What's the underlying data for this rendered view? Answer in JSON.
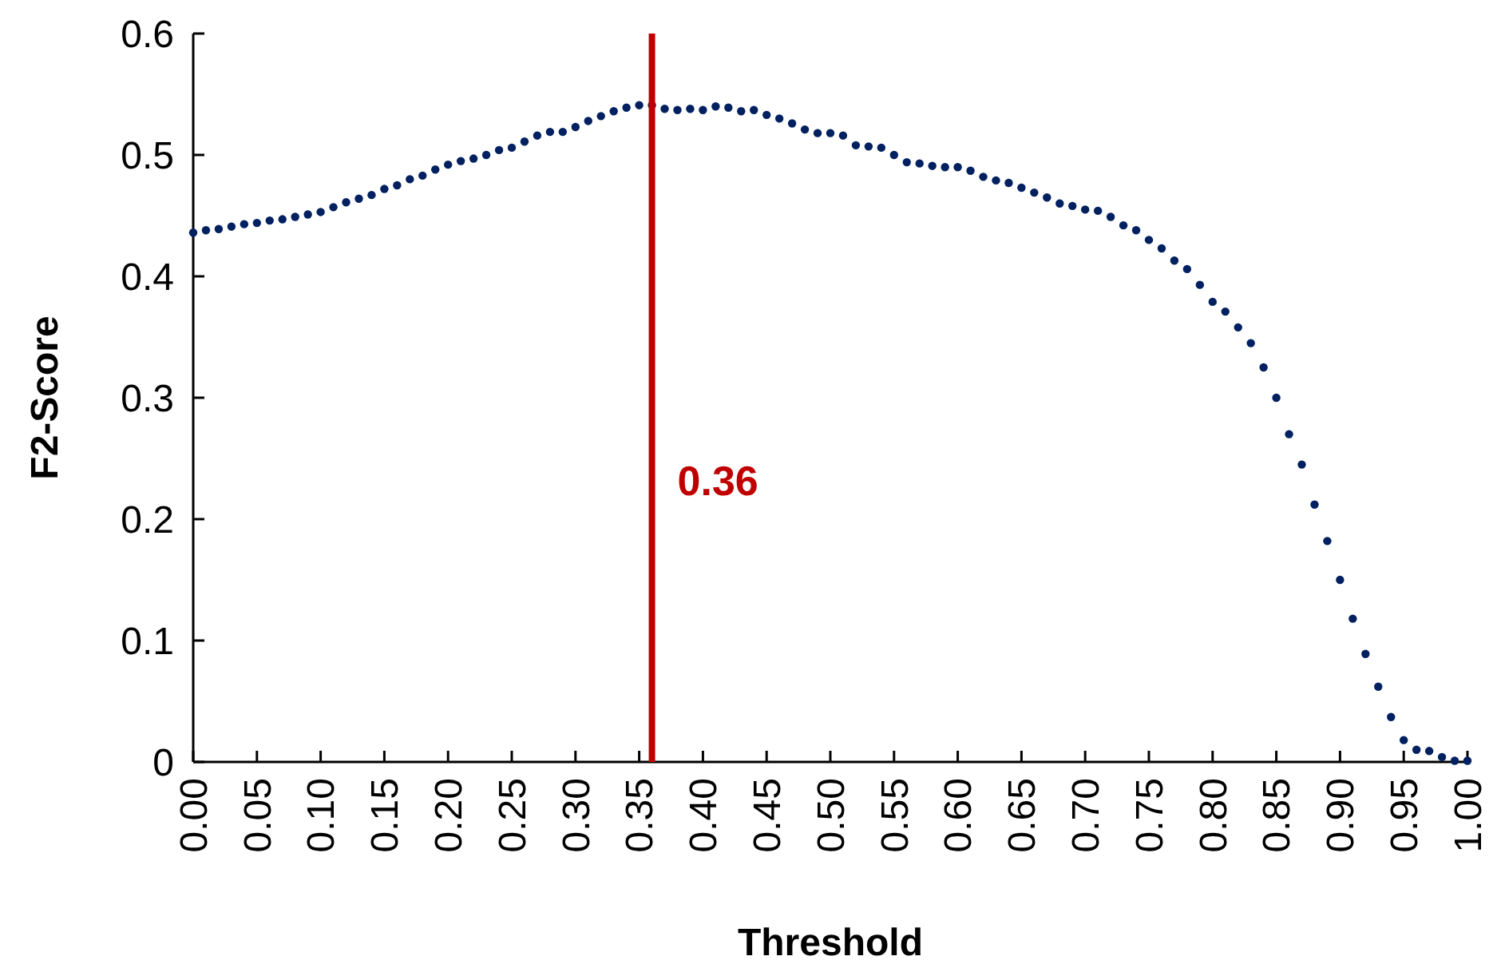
{
  "chart_data": {
    "type": "scatter",
    "xlabel": "Threshold",
    "ylabel": "F2-Score",
    "marker": "circle",
    "grid": false,
    "xlim": [
      0,
      1
    ],
    "ylim": [
      0,
      0.6
    ],
    "xticks": [
      {
        "value": 0,
        "label": "0.00"
      },
      {
        "value": 0.05,
        "label": "0.05"
      },
      {
        "value": 0.1,
        "label": "0.10"
      },
      {
        "value": 0.15,
        "label": "0.15"
      },
      {
        "value": 0.2,
        "label": "0.20"
      },
      {
        "value": 0.25,
        "label": "0.25"
      },
      {
        "value": 0.3,
        "label": "0.30"
      },
      {
        "value": 0.35,
        "label": "0.35"
      },
      {
        "value": 0.4,
        "label": "0.40"
      },
      {
        "value": 0.45,
        "label": "0.45"
      },
      {
        "value": 0.5,
        "label": "0.50"
      },
      {
        "value": 0.55,
        "label": "0.55"
      },
      {
        "value": 0.6,
        "label": "0.60"
      },
      {
        "value": 0.65,
        "label": "0.65"
      },
      {
        "value": 0.7,
        "label": "0.70"
      },
      {
        "value": 0.75,
        "label": "0.75"
      },
      {
        "value": 0.8,
        "label": "0.80"
      },
      {
        "value": 0.85,
        "label": "0.85"
      },
      {
        "value": 0.9,
        "label": "0.90"
      },
      {
        "value": 0.95,
        "label": "0.95"
      },
      {
        "value": 1,
        "label": "1.00"
      }
    ],
    "yticks": [
      0,
      0.1,
      0.2,
      0.3,
      0.4,
      0.5,
      0.6
    ],
    "x": [
      0,
      0.01,
      0.02,
      0.03,
      0.04,
      0.05,
      0.06,
      0.07,
      0.08,
      0.09,
      0.1,
      0.11,
      0.12,
      0.13,
      0.14,
      0.15,
      0.16,
      0.17,
      0.18,
      0.19,
      0.2,
      0.21,
      0.22,
      0.23,
      0.24,
      0.25,
      0.26,
      0.27,
      0.28,
      0.29,
      0.3,
      0.31,
      0.32,
      0.33,
      0.34,
      0.35,
      0.36,
      0.37,
      0.38,
      0.39,
      0.4,
      0.41,
      0.42,
      0.43,
      0.44,
      0.45,
      0.46,
      0.47,
      0.48,
      0.49,
      0.5,
      0.51,
      0.52,
      0.53,
      0.54,
      0.55,
      0.56,
      0.57,
      0.58,
      0.59,
      0.6,
      0.61,
      0.62,
      0.63,
      0.64,
      0.65,
      0.66,
      0.67,
      0.68,
      0.69,
      0.7,
      0.71,
      0.72,
      0.73,
      0.74,
      0.75,
      0.76,
      0.77,
      0.78,
      0.79,
      0.8,
      0.81,
      0.82,
      0.83,
      0.84,
      0.85,
      0.86,
      0.87,
      0.88,
      0.89,
      0.9,
      0.91,
      0.92,
      0.93,
      0.94,
      0.95,
      0.96,
      0.97,
      0.98,
      0.99,
      1
    ],
    "series": [
      {
        "color": "#002060",
        "values": [
          0.436,
          0.438,
          0.439,
          0.441,
          0.443,
          0.444,
          0.446,
          0.447,
          0.449,
          0.451,
          0.453,
          0.457,
          0.461,
          0.464,
          0.467,
          0.472,
          0.475,
          0.48,
          0.483,
          0.488,
          0.492,
          0.495,
          0.497,
          0.5,
          0.504,
          0.506,
          0.511,
          0.516,
          0.519,
          0.519,
          0.523,
          0.528,
          0.532,
          0.536,
          0.539,
          0.541,
          0.541,
          0.538,
          0.537,
          0.538,
          0.537,
          0.54,
          0.539,
          0.536,
          0.537,
          0.533,
          0.53,
          0.526,
          0.521,
          0.518,
          0.518,
          0.516,
          0.508,
          0.507,
          0.506,
          0.5,
          0.494,
          0.493,
          0.491,
          0.49,
          0.49,
          0.487,
          0.482,
          0.479,
          0.477,
          0.473,
          0.469,
          0.465,
          0.46,
          0.458,
          0.455,
          0.454,
          0.449,
          0.442,
          0.438,
          0.43,
          0.423,
          0.413,
          0.406,
          0.393,
          0.379,
          0.371,
          0.358,
          0.345,
          0.325,
          0.3,
          0.27,
          0.245,
          0.212,
          0.182,
          0.15,
          0.118,
          0.089,
          0.062,
          0.037,
          0.018,
          0.01,
          0.009,
          0.004,
          0.001,
          0.001
        ]
      }
    ],
    "ref_lines": [
      {
        "axis": "x",
        "value": 0.36,
        "label": "0.36",
        "color": "#c00000"
      }
    ]
  }
}
